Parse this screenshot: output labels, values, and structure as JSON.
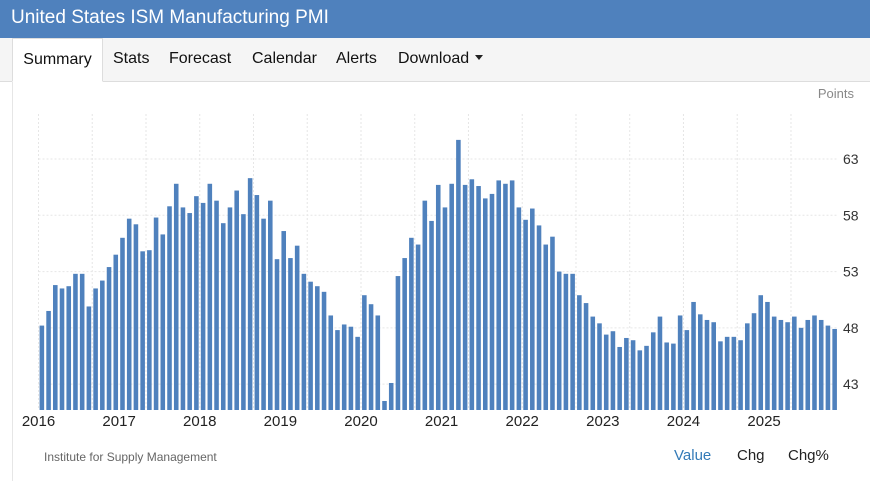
{
  "header": {
    "title": "United States ISM Manufacturing PMI"
  },
  "tabs": [
    {
      "label": "Summary",
      "active": true
    },
    {
      "label": "Stats"
    },
    {
      "label": "Forecast"
    },
    {
      "label": "Calendar"
    },
    {
      "label": "Alerts"
    },
    {
      "label": "Download",
      "dropdown": true
    }
  ],
  "unit_label": "Points",
  "source": "Institute for Supply Management",
  "view_modes": [
    {
      "label": "Value",
      "active": true
    },
    {
      "label": "Chg"
    },
    {
      "label": "Chg%"
    }
  ],
  "colors": {
    "header": "#4f81bd",
    "bar": "#4f81bd",
    "active_mode": "#337ab7"
  },
  "chart_data": {
    "type": "bar",
    "title": "",
    "xlabel": "",
    "ylabel": "",
    "x_start": "2016-01",
    "x_ticks": [
      "2016",
      "2017",
      "2018",
      "2019",
      "2020",
      "2021",
      "2022",
      "2023",
      "2024",
      "2025"
    ],
    "y_ticks": [
      43,
      48,
      53,
      58,
      63
    ],
    "ylim": [
      40.7,
      67
    ],
    "y_axis_position": "right",
    "grid": true,
    "series": [
      {
        "values": [
          48.2,
          49.5,
          51.8,
          51.5,
          51.7,
          52.8,
          52.8,
          49.9,
          51.5,
          52.2,
          53.4,
          54.5,
          56.0,
          57.7,
          57.2,
          54.8,
          54.9,
          57.8,
          56.3,
          58.8,
          60.8,
          58.7,
          58.2,
          59.7,
          59.1,
          60.8,
          59.3,
          57.3,
          58.7,
          60.2,
          58.1,
          61.3,
          59.8,
          57.7,
          59.3,
          54.1,
          56.6,
          54.2,
          55.3,
          52.8,
          52.1,
          51.7,
          51.2,
          49.1,
          47.8,
          48.3,
          48.1,
          47.2,
          50.9,
          50.1,
          49.1,
          41.5,
          43.1,
          52.6,
          54.2,
          56.0,
          55.4,
          59.3,
          57.5,
          60.7,
          58.7,
          60.8,
          64.7,
          60.7,
          61.2,
          60.6,
          59.5,
          59.9,
          61.1,
          60.8,
          61.1,
          58.7,
          57.6,
          58.6,
          57.1,
          55.4,
          56.1,
          53.0,
          52.8,
          52.8,
          50.9,
          50.2,
          49.0,
          48.4,
          47.4,
          47.7,
          46.3,
          47.1,
          46.9,
          46.0,
          46.4,
          47.6,
          49.0,
          46.7,
          46.6,
          49.1,
          47.8,
          50.3,
          49.2,
          48.7,
          48.5,
          46.8,
          47.2,
          47.2,
          46.9,
          48.4,
          49.3,
          50.9,
          50.3,
          49.0,
          48.7,
          48.5,
          49.0,
          48.0,
          48.7,
          49.1,
          48.7,
          48.2,
          47.9
        ]
      }
    ]
  }
}
